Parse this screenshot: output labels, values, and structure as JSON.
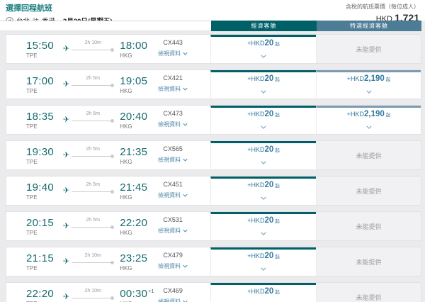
{
  "header": {
    "title": "選擇回程航班",
    "route": {
      "origin": "台北",
      "via": "往",
      "destination": "香港",
      "date": "3月20日(星期五)"
    },
    "fare_note": "含稅的航班票價（每位成人）",
    "fare_currency": "HKD",
    "fare_amount": "1,721"
  },
  "columns": {
    "economy": "經濟客艙",
    "premium": "特選經濟客艙"
  },
  "labels": {
    "view_details": "檢視資料",
    "not_available": "未能提供",
    "plus_currency": "+HKD",
    "from_suffix": "起"
  },
  "colors": {
    "brand_teal": "#006068",
    "premium_slate": "#4d7d96",
    "premium_border": "#7e9ab0",
    "price_blue": "#31789e",
    "link_blue": "#4d87a8"
  },
  "flights": [
    {
      "dep_time": "15:50",
      "dep_code": "TPE",
      "duration": "2h 10m",
      "arr_time": "18:00",
      "arr_suffix": "",
      "arr_code": "HKG",
      "flight_no": "CX443",
      "economy": {
        "available": true,
        "amount": "20"
      },
      "premium": {
        "available": false
      }
    },
    {
      "dep_time": "17:00",
      "dep_code": "TPE",
      "duration": "2h 5m",
      "arr_time": "19:05",
      "arr_suffix": "",
      "arr_code": "HKG",
      "flight_no": "CX421",
      "economy": {
        "available": true,
        "amount": "20"
      },
      "premium": {
        "available": true,
        "amount": "2,190"
      }
    },
    {
      "dep_time": "18:35",
      "dep_code": "TPE",
      "duration": "2h 5m",
      "arr_time": "20:40",
      "arr_suffix": "",
      "arr_code": "HKG",
      "flight_no": "CX473",
      "economy": {
        "available": true,
        "amount": "20"
      },
      "premium": {
        "available": true,
        "amount": "2,190"
      }
    },
    {
      "dep_time": "19:30",
      "dep_code": "TPE",
      "duration": "2h 5m",
      "arr_time": "21:35",
      "arr_suffix": "",
      "arr_code": "HKG",
      "flight_no": "CX565",
      "economy": {
        "available": true,
        "amount": "20"
      },
      "premium": {
        "available": false
      }
    },
    {
      "dep_time": "19:40",
      "dep_code": "TPE",
      "duration": "2h 5m",
      "arr_time": "21:45",
      "arr_suffix": "",
      "arr_code": "HKG",
      "flight_no": "CX451",
      "economy": {
        "available": true,
        "amount": "20"
      },
      "premium": {
        "available": false
      }
    },
    {
      "dep_time": "20:15",
      "dep_code": "TPE",
      "duration": "2h 5m",
      "arr_time": "22:20",
      "arr_suffix": "",
      "arr_code": "HKG",
      "flight_no": "CX531",
      "economy": {
        "available": true,
        "amount": "20"
      },
      "premium": {
        "available": false
      }
    },
    {
      "dep_time": "21:15",
      "dep_code": "TPE",
      "duration": "2h 10m",
      "arr_time": "23:25",
      "arr_suffix": "",
      "arr_code": "HKG",
      "flight_no": "CX479",
      "economy": {
        "available": true,
        "amount": "20"
      },
      "premium": {
        "available": false
      }
    },
    {
      "dep_time": "22:20",
      "dep_code": "TPE",
      "duration": "2h 10m",
      "arr_time": "00:30",
      "arr_suffix": "+1",
      "arr_code": "HKG",
      "flight_no": "CX469",
      "economy": {
        "available": true,
        "amount": "20"
      },
      "premium": {
        "available": false
      }
    }
  ]
}
